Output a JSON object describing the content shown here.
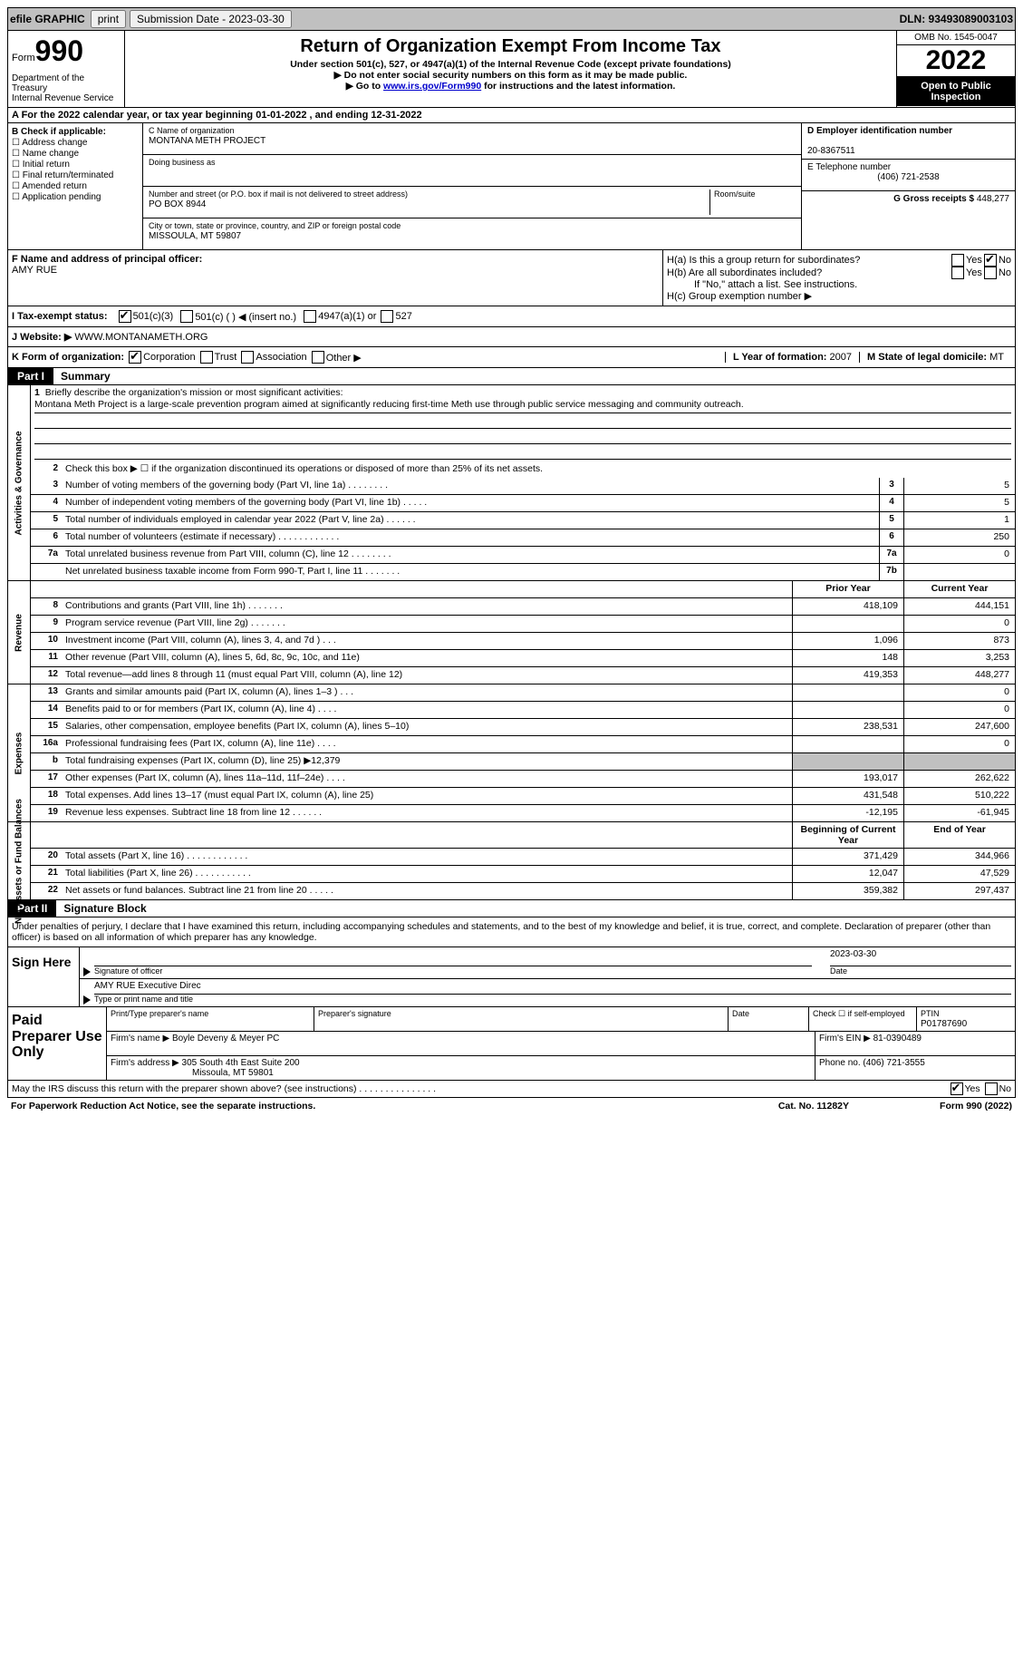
{
  "topbar": {
    "efile": "efile GRAPHIC",
    "print": "print",
    "submission": "Submission Date - 2023-03-30",
    "dln": "DLN: 93493089003103"
  },
  "header": {
    "form_word": "Form",
    "form_num": "990",
    "title": "Return of Organization Exempt From Income Tax",
    "sub1": "Under section 501(c), 527, or 4947(a)(1) of the Internal Revenue Code (except private foundations)",
    "sub2": "▶ Do not enter social security numbers on this form as it may be made public.",
    "sub3_pre": "▶ Go to ",
    "sub3_link": "www.irs.gov/Form990",
    "sub3_post": " for instructions and the latest information.",
    "dept": "Department of the Treasury\nInternal Revenue Service",
    "omb": "OMB No. 1545-0047",
    "year": "2022",
    "open": "Open to Public Inspection"
  },
  "rowA": {
    "text_pre": "A For the 2022 calendar year, or tax year beginning ",
    "begin": "01-01-2022",
    "mid": " , and ending ",
    "end": "12-31-2022"
  },
  "colB": {
    "head": "B Check if applicable:",
    "opts": [
      "Address change",
      "Name change",
      "Initial return",
      "Final return/terminated",
      "Amended return",
      "Application pending"
    ]
  },
  "colC": {
    "name_label": "C Name of organization",
    "name": "MONTANA METH PROJECT",
    "dba_label": "Doing business as",
    "addr_label": "Number and street (or P.O. box if mail is not delivered to street address)",
    "room_label": "Room/suite",
    "addr": "PO BOX 8944",
    "city_label": "City or town, state or province, country, and ZIP or foreign postal code",
    "city": "MISSOULA, MT  59807"
  },
  "colDE": {
    "d_label": "D Employer identification number",
    "d_val": "20-8367511",
    "e_label": "E Telephone number",
    "e_val": "(406) 721-2538",
    "g_label": "G Gross receipts $",
    "g_val": "448,277"
  },
  "rowF": {
    "f_label": "F Name and address of principal officer:",
    "f_name": "AMY RUE",
    "ha": "H(a)  Is this a group return for subordinates?",
    "hb": "H(b)  Are all subordinates included?",
    "hb_note": "If \"No,\" attach a list. See instructions.",
    "hc": "H(c)  Group exemption number ▶",
    "yes": "Yes",
    "no": "No"
  },
  "rowTax": {
    "label": "I  Tax-exempt status:",
    "o1": "501(c)(3)",
    "o2": "501(c) (  ) ◀ (insert no.)",
    "o3": "4947(a)(1) or",
    "o4": "527"
  },
  "rowJ": {
    "label": "J  Website: ▶",
    "val": "WWW.MONTANAMETH.ORG"
  },
  "rowK": {
    "label": "K Form of organization:",
    "corp": "Corporation",
    "trust": "Trust",
    "assoc": "Association",
    "other": "Other ▶",
    "l_label": "L Year of formation:",
    "l_val": "2007",
    "m_label": "M State of legal domicile:",
    "m_val": "MT"
  },
  "part1": {
    "tab": "Part I",
    "title": "Summary"
  },
  "mission": {
    "num": "1",
    "label": "Briefly describe the organization's mission or most significant activities:",
    "text": "Montana Meth Project is a large-scale prevention program aimed at significantly reducing first-time Meth use through public service messaging and community outreach."
  },
  "line2": {
    "num": "2",
    "text": "Check this box ▶ ☐ if the organization discontinued its operations or disposed of more than 25% of its net assets."
  },
  "govRows": [
    {
      "n": "3",
      "d": "Number of voting members of the governing body (Part VI, line 1a)   .    .    .    .    .    .    .    .",
      "b": "3",
      "v": "5"
    },
    {
      "n": "4",
      "d": "Number of independent voting members of the governing body (Part VI, line 1b)   .    .    .    .    .",
      "b": "4",
      "v": "5"
    },
    {
      "n": "5",
      "d": "Total number of individuals employed in calendar year 2022 (Part V, line 2a)   .    .    .    .    .    .",
      "b": "5",
      "v": "1"
    },
    {
      "n": "6",
      "d": "Total number of volunteers (estimate if necessary)   .    .    .    .    .    .    .    .    .    .    .    .",
      "b": "6",
      "v": "250"
    },
    {
      "n": "7a",
      "d": "Total unrelated business revenue from Part VIII, column (C), line 12   .    .    .    .    .    .    .    .",
      "b": "7a",
      "v": "0"
    },
    {
      "n": "",
      "d": "Net unrelated business taxable income from Form 990-T, Part I, line 11   .    .    .    .    .    .    .",
      "b": "7b",
      "v": ""
    }
  ],
  "twoColHead": {
    "prior": "Prior Year",
    "current": "Current Year"
  },
  "revRows": [
    {
      "n": "8",
      "d": "Contributions and grants (Part VIII, line 1h)   .    .    .    .    .    .    .",
      "p": "418,109",
      "c": "444,151"
    },
    {
      "n": "9",
      "d": "Program service revenue (Part VIII, line 2g)   .    .    .    .    .    .    .",
      "p": "",
      "c": "0"
    },
    {
      "n": "10",
      "d": "Investment income (Part VIII, column (A), lines 3, 4, and 7d )   .    .    .",
      "p": "1,096",
      "c": "873"
    },
    {
      "n": "11",
      "d": "Other revenue (Part VIII, column (A), lines 5, 6d, 8c, 9c, 10c, and 11e)",
      "p": "148",
      "c": "3,253"
    },
    {
      "n": "12",
      "d": "Total revenue—add lines 8 through 11 (must equal Part VIII, column (A), line 12)",
      "p": "419,353",
      "c": "448,277"
    }
  ],
  "expRows": [
    {
      "n": "13",
      "d": "Grants and similar amounts paid (Part IX, column (A), lines 1–3 )   .    .    .",
      "p": "",
      "c": "0"
    },
    {
      "n": "14",
      "d": "Benefits paid to or for members (Part IX, column (A), line 4)   .    .    .    .",
      "p": "",
      "c": "0"
    },
    {
      "n": "15",
      "d": "Salaries, other compensation, employee benefits (Part IX, column (A), lines 5–10)",
      "p": "238,531",
      "c": "247,600"
    },
    {
      "n": "16a",
      "d": "Professional fundraising fees (Part IX, column (A), line 11e)   .    .    .    .",
      "p": "",
      "c": "0"
    },
    {
      "n": "b",
      "d": "Total fundraising expenses (Part IX, column (D), line 25) ▶12,379",
      "p": "SHADE",
      "c": "SHADE"
    },
    {
      "n": "17",
      "d": "Other expenses (Part IX, column (A), lines 11a–11d, 11f–24e)   .    .    .    .",
      "p": "193,017",
      "c": "262,622"
    },
    {
      "n": "18",
      "d": "Total expenses. Add lines 13–17 (must equal Part IX, column (A), line 25)",
      "p": "431,548",
      "c": "510,222"
    },
    {
      "n": "19",
      "d": "Revenue less expenses. Subtract line 18 from line 12   .    .    .    .    .    .",
      "p": "-12,195",
      "c": "-61,945"
    }
  ],
  "netHead": {
    "begin": "Beginning of Current Year",
    "end": "End of Year"
  },
  "netRows": [
    {
      "n": "20",
      "d": "Total assets (Part X, line 16)   .    .    .    .    .    .    .    .    .    .    .    .",
      "p": "371,429",
      "c": "344,966"
    },
    {
      "n": "21",
      "d": "Total liabilities (Part X, line 26)   .    .    .    .    .    .    .    .    .    .    .",
      "p": "12,047",
      "c": "47,529"
    },
    {
      "n": "22",
      "d": "Net assets or fund balances. Subtract line 21 from line 20   .    .    .    .    .",
      "p": "359,382",
      "c": "297,437"
    }
  ],
  "part2": {
    "tab": "Part II",
    "title": "Signature Block"
  },
  "penalty": "Under penalties of perjury, I declare that I have examined this return, including accompanying schedules and statements, and to the best of my knowledge and belief, it is true, correct, and complete. Declaration of preparer (other than officer) is based on all information of which preparer has any knowledge.",
  "sign": {
    "here": "Sign Here",
    "sig_label": "Signature of officer",
    "date": "2023-03-30",
    "date_label": "Date",
    "name": "AMY RUE  Executive Direc",
    "name_label": "Type or print name and title"
  },
  "prep": {
    "title": "Paid Preparer Use Only",
    "r1": {
      "c1_label": "Print/Type preparer's name",
      "c2_label": "Preparer's signature",
      "c3_label": "Date",
      "c4_label": "Check ☐ if self-employed",
      "c5_label": "PTIN",
      "c5_val": "P01787690"
    },
    "r2": {
      "label": "Firm's name    ▶",
      "val": "Boyle Deveny & Meyer PC",
      "ein_label": "Firm's EIN ▶",
      "ein": "81-0390489"
    },
    "r3": {
      "label": "Firm's address ▶",
      "val": "305 South 4th East Suite 200",
      "city": "Missoula, MT  59801",
      "ph_label": "Phone no.",
      "ph": "(406) 721-3555"
    }
  },
  "footer": {
    "discuss": "May the IRS discuss this return with the preparer shown above? (see instructions)   .    .    .    .    .    .    .    .    .    .    .    .    .    .    .",
    "yes": "Yes",
    "no": "No",
    "pra": "For Paperwork Reduction Act Notice, see the separate instructions.",
    "cat": "Cat. No. 11282Y",
    "form": "Form 990 (2022)"
  }
}
